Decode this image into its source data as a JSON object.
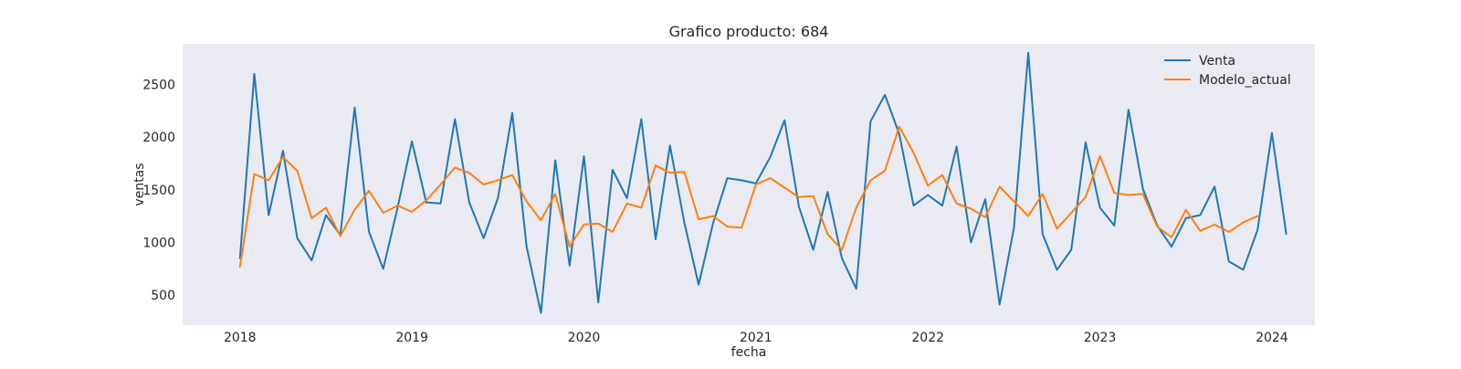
{
  "chart_data": {
    "type": "line",
    "title": "Grafico producto: 684",
    "xlabel": "fecha",
    "ylabel": "ventas",
    "x_start": "2018-01",
    "x_frequency": "monthly",
    "x_ticks": [
      "2018",
      "2019",
      "2020",
      "2021",
      "2022",
      "2023",
      "2024"
    ],
    "y_ticks": [
      500,
      1000,
      1500,
      2000,
      2500
    ],
    "xlim": [
      "2017-09",
      "2024-04"
    ],
    "ylim": [
      215,
      2885
    ],
    "grid": false,
    "legend_position": "top-right",
    "series": [
      {
        "name": "Venta",
        "color": "#1f77b4",
        "values": [
          850,
          2600,
          1260,
          1870,
          1040,
          830,
          1260,
          1070,
          2280,
          1100,
          750,
          1330,
          1960,
          1380,
          1370,
          2170,
          1380,
          1040,
          1420,
          2230,
          960,
          330,
          1780,
          780,
          1820,
          430,
          1690,
          1420,
          2170,
          1030,
          1920,
          1190,
          600,
          1180,
          1610,
          1590,
          1560,
          1810,
          2160,
          1340,
          930,
          1480,
          850,
          560,
          2150,
          2400,
          2030,
          1350,
          1450,
          1350,
          1910,
          1000,
          1410,
          410,
          1140,
          2800,
          1080,
          740,
          930,
          1950,
          1330,
          1160,
          2260,
          1510,
          1160,
          960,
          1230,
          1260,
          1530,
          820,
          740,
          1120,
          2040,
          1080
        ]
      },
      {
        "name": "Modelo_actual",
        "color": "#ff7f0e",
        "values": [
          770,
          1650,
          1590,
          1810,
          1680,
          1230,
          1330,
          1060,
          1310,
          1490,
          1280,
          1350,
          1290,
          1400,
          1550,
          1710,
          1660,
          1550,
          1590,
          1640,
          1390,
          1210,
          1460,
          960,
          1170,
          1180,
          1100,
          1370,
          1330,
          1730,
          1660,
          1670,
          1220,
          1250,
          1150,
          1140,
          1550,
          1610,
          1520,
          1430,
          1440,
          1080,
          930,
          1330,
          1590,
          1680,
          2100,
          1850,
          1540,
          1640,
          1370,
          1320,
          1240,
          1530,
          1390,
          1250,
          1460,
          1130,
          1280,
          1430,
          1820,
          1470,
          1450,
          1460,
          1150,
          1050,
          1310,
          1110,
          1170,
          1100,
          1190,
          1250
        ]
      }
    ]
  }
}
